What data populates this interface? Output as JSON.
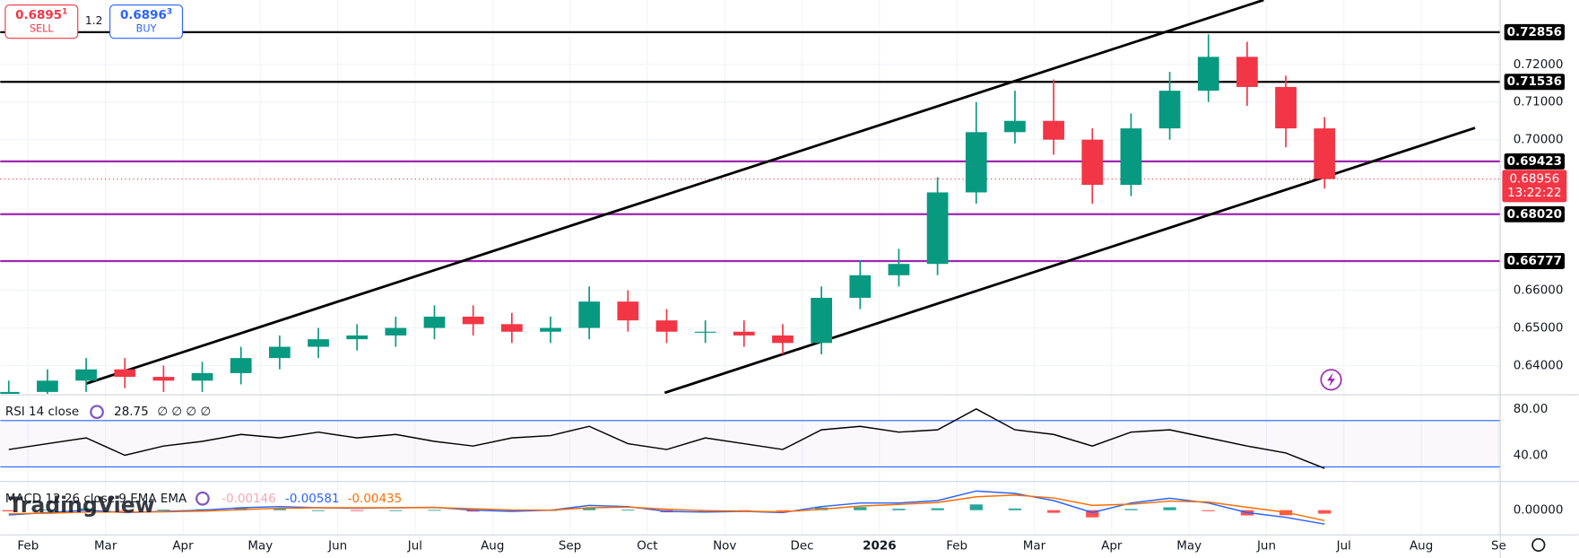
{
  "chart_data": {
    "type": "candlestick",
    "trade_panel": {
      "sell_price": "0.6895",
      "sell_sup": "1",
      "sell": "SELL",
      "spread": "1.2",
      "buy_price": "0.6896",
      "buy_sup": "3",
      "buy": "BUY"
    },
    "watermark": "TradingView",
    "xlim": [
      -0.36,
      19.02
    ],
    "xticks": [
      {
        "value": 0,
        "label": "Feb"
      },
      {
        "value": 1,
        "label": "Mar"
      },
      {
        "value": 2,
        "label": "Apr"
      },
      {
        "value": 3,
        "label": "May"
      },
      {
        "value": 4,
        "label": "Jun"
      },
      {
        "value": 5,
        "label": "Jul"
      },
      {
        "value": 6,
        "label": "Aug"
      },
      {
        "value": 7,
        "label": "Sep"
      },
      {
        "value": 8,
        "label": "Oct"
      },
      {
        "value": 9,
        "label": "Nov"
      },
      {
        "value": 10,
        "label": "Dec"
      },
      {
        "value": 11,
        "label": "2026"
      },
      {
        "value": 12,
        "label": "Feb"
      },
      {
        "value": 13,
        "label": "Mar"
      },
      {
        "value": 14,
        "label": "Apr"
      },
      {
        "value": 15,
        "label": "May"
      },
      {
        "value": 16,
        "label": "Jun"
      },
      {
        "value": 17,
        "label": "Jul"
      },
      {
        "value": 18,
        "label": "Aug"
      },
      {
        "value": 19,
        "label": "Se"
      }
    ],
    "ylim": [
      0.6325,
      0.7371
    ],
    "yticks": [
      {
        "value": 0.64,
        "label": "0.64000"
      },
      {
        "value": 0.65,
        "label": "0.65000"
      },
      {
        "value": 0.66,
        "label": "0.66000"
      },
      {
        "value": 0.7,
        "label": "0.70000"
      },
      {
        "value": 0.71,
        "label": "0.71000"
      },
      {
        "value": 0.72,
        "label": "0.72000"
      }
    ],
    "up_color": "#089981",
    "down_color": "#f23645",
    "x": [
      -0.25,
      0.25,
      0.75,
      1.25,
      1.75,
      2.25,
      2.75,
      3.25,
      3.75,
      4.25,
      4.75,
      5.25,
      5.75,
      6.25,
      6.75,
      7.25,
      7.75,
      8.25,
      8.75,
      9.25,
      9.75,
      10.25,
      10.75,
      11.25,
      11.75,
      12.25,
      12.75,
      13.25,
      13.75,
      14.25,
      14.75,
      15.25,
      15.75,
      16.25,
      16.75
    ],
    "open": [
      0.631,
      0.633,
      0.636,
      0.639,
      0.637,
      0.636,
      0.638,
      0.642,
      0.645,
      0.647,
      0.648,
      0.65,
      0.653,
      0.651,
      0.649,
      0.65,
      0.657,
      0.652,
      0.649,
      0.649,
      0.648,
      0.646,
      0.658,
      0.664,
      0.667,
      0.686,
      0.702,
      0.705,
      0.7,
      0.688,
      0.703,
      0.713,
      0.722,
      0.714,
      0.703
    ],
    "high": [
      0.636,
      0.639,
      0.642,
      0.642,
      0.64,
      0.641,
      0.645,
      0.648,
      0.65,
      0.651,
      0.653,
      0.656,
      0.656,
      0.654,
      0.653,
      0.661,
      0.66,
      0.655,
      0.652,
      0.652,
      0.651,
      0.661,
      0.668,
      0.671,
      0.69,
      0.71,
      0.713,
      0.716,
      0.703,
      0.707,
      0.718,
      0.728,
      0.726,
      0.717,
      0.706
    ],
    "low": [
      0.628,
      0.63,
      0.633,
      0.634,
      0.633,
      0.633,
      0.635,
      0.639,
      0.642,
      0.644,
      0.645,
      0.647,
      0.648,
      0.646,
      0.646,
      0.647,
      0.649,
      0.646,
      0.646,
      0.645,
      0.643,
      0.643,
      0.655,
      0.661,
      0.664,
      0.683,
      0.699,
      0.696,
      0.683,
      0.685,
      0.7,
      0.71,
      0.709,
      0.698,
      0.687
    ],
    "close": [
      0.633,
      0.636,
      0.639,
      0.637,
      0.636,
      0.638,
      0.642,
      0.645,
      0.647,
      0.648,
      0.65,
      0.653,
      0.651,
      0.649,
      0.65,
      0.657,
      0.652,
      0.649,
      0.649,
      0.648,
      0.646,
      0.658,
      0.664,
      0.667,
      0.686,
      0.702,
      0.705,
      0.7,
      0.688,
      0.703,
      0.713,
      0.722,
      0.714,
      0.703,
      0.68956
    ],
    "last_price": {
      "value": 0.68956,
      "label": "0.68956",
      "countdown": "13:22:22"
    },
    "levels": [
      {
        "value": 0.72856,
        "label": "0.72856",
        "color": "#000000"
      },
      {
        "value": 0.71536,
        "label": "0.71536",
        "color": "#000000"
      },
      {
        "value": 0.69423,
        "label": "0.69423",
        "color": "#9c27b0"
      },
      {
        "value": 0.6802,
        "label": "0.68020",
        "color": "#9c27b0"
      },
      {
        "value": 0.66777,
        "label": "0.66777",
        "color": "#9c27b0"
      }
    ],
    "rsi": {
      "name": "RSI 14 close",
      "extra": "∅ ∅ ∅ ∅",
      "color": "#000000",
      "ylim": [
        17.4,
        92.2
      ],
      "yticks": [
        {
          "value": 80,
          "label": "80.00"
        },
        {
          "value": 40,
          "label": "40.00"
        }
      ],
      "bands": [
        70,
        30
      ],
      "values": [
        45,
        50,
        55,
        40,
        48,
        52,
        58,
        55,
        60,
        55,
        58,
        52,
        48,
        55,
        57,
        65,
        50,
        45,
        55,
        50,
        45,
        62,
        65,
        60,
        62,
        80,
        62,
        58,
        48,
        60,
        62,
        55,
        48,
        42,
        28.75
      ]
    },
    "macd": {
      "name": "MACD 12 26 close 9 EMA EMA",
      "ylim": [
        -0.0103,
        0.012
      ],
      "yticks": [
        {
          "value": 0,
          "label": "0.00000"
        }
      ],
      "hist_values": [
        -0.0005,
        0.0003,
        0.0008,
        -0.0002,
        0.0002,
        0.0004,
        0.0008,
        0.0007,
        0.0,
        -0.0002,
        0.0,
        0.0001,
        -0.0006,
        -0.0006,
        0.0,
        0.001,
        0.0002,
        -0.0009,
        -0.0006,
        -0.0001,
        -0.0003,
        0.0011,
        0.0013,
        0.0006,
        0.0008,
        0.0024,
        0.0007,
        -0.0011,
        -0.003,
        0.0005,
        0.0012,
        -0.0004,
        -0.0022,
        -0.0021,
        -0.00146
      ],
      "hist_label": "-0.00146",
      "macd_values": [
        -0.002,
        -0.001,
        0.0,
        -0.001,
        -0.0005,
        0.0,
        0.001,
        0.0015,
        0.001,
        0.0008,
        0.001,
        0.0012,
        0.0,
        -0.0005,
        0.0,
        0.002,
        0.0015,
        -0.0005,
        -0.0008,
        -0.0005,
        -0.001,
        0.0015,
        0.003,
        0.003,
        0.004,
        0.008,
        0.007,
        0.004,
        -0.001,
        0.003,
        0.005,
        0.003,
        -0.001,
        -0.003,
        -0.00581
      ],
      "macd_label": "-0.00581",
      "macd_color": "#2962ff",
      "signal_values": [
        -0.0015,
        -0.0013,
        -0.0008,
        -0.0008,
        -0.0007,
        -0.0004,
        0.0002,
        0.0008,
        0.001,
        0.001,
        0.001,
        0.0011,
        0.0006,
        0.0001,
        0.0,
        0.001,
        0.0013,
        0.0004,
        -0.0002,
        -0.0004,
        -0.0007,
        0.0004,
        0.0017,
        0.0024,
        0.0032,
        0.0056,
        0.0063,
        0.0051,
        0.002,
        0.0025,
        0.0038,
        0.0034,
        0.0012,
        -0.0009,
        -0.00435
      ],
      "signal_label": "-0.00435",
      "signal_color": "#ff6d00"
    }
  }
}
